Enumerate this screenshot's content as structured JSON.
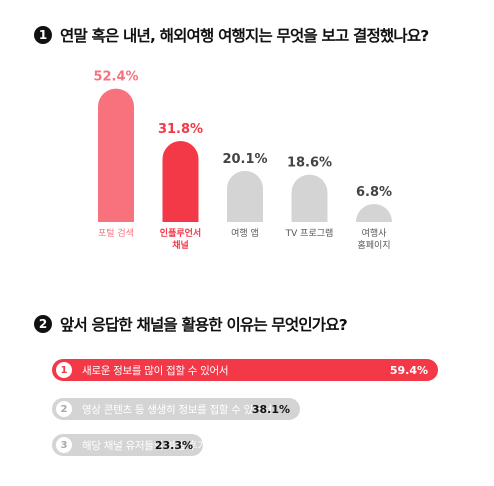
{
  "chart_data": [
    {
      "type": "bar",
      "title": "연말 혹은 내년, 해외여행 여행지는 무엇을 보고 결정했나요?",
      "number_badge": "1",
      "categories": [
        "포털 검색",
        "인플루언서\n채널",
        "여행 앱",
        "TV 프로그램",
        "여행사\n홈페이지"
      ],
      "values": [
        52.4,
        31.8,
        20.1,
        18.6,
        6.8
      ],
      "value_labels": [
        "52.4%",
        "31.8%",
        "20.1%",
        "18.6%",
        "6.8%"
      ],
      "unit": "%",
      "colors": [
        "#f8727e",
        "#f33848",
        "#d4d4d4",
        "#d4d4d4",
        "#d4d4d4"
      ],
      "label_colors": [
        "#f8727e",
        "#f33848",
        "#555555",
        "#555555",
        "#555555"
      ],
      "ylim": [
        0,
        55
      ],
      "grid": false
    },
    {
      "type": "bar",
      "orientation": "horizontal",
      "title": "앞서 응답한 채널을 활용한 이유는 무엇인가요?",
      "number_badge": "2",
      "categories": [
        "새로운 정보를 많이 접할 수 있어서",
        "영상 콘텐츠 등 생생히 정보를 접할 수 있어서",
        "해당 채널 유저들의 여행 후기가 긍정적이어서"
      ],
      "rank_numbers": [
        "1",
        "2",
        "3"
      ],
      "values": [
        59.4,
        38.1,
        23.3
      ],
      "value_labels": [
        "59.4%",
        "38.1%",
        "23.3%"
      ],
      "unit": "%",
      "colors": [
        "#f33848",
        "#d4d4d4",
        "#d4d4d4"
      ],
      "grid": false
    }
  ]
}
